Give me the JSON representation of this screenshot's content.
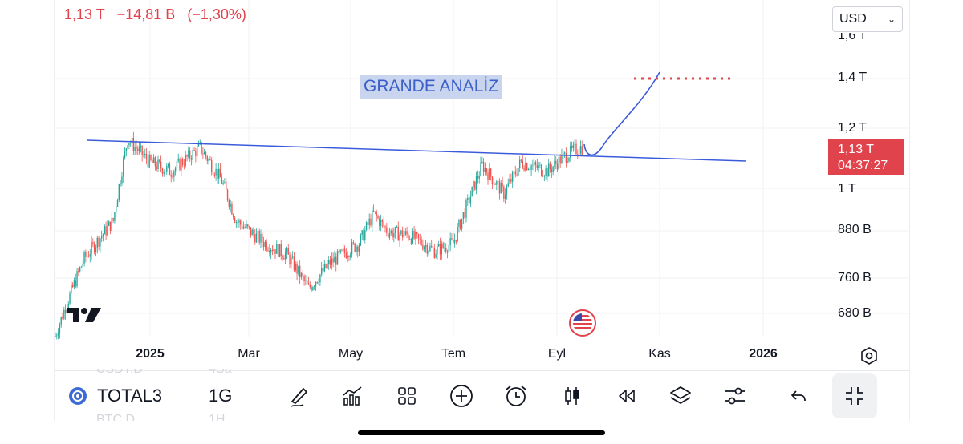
{
  "header": {
    "price": "1,13 T",
    "change": "−14,81 B",
    "change_pct": "(−1,30%)"
  },
  "currency": {
    "value": "USD"
  },
  "annotation": {
    "text": "GRANDE ANALİZ"
  },
  "y_axis": {
    "labels": [
      "1,6 T",
      "1,4 T",
      "1,2 T",
      "1 T",
      "880 B",
      "760 B",
      "680 B"
    ]
  },
  "price_tag": {
    "price": "1,13 T",
    "countdown": "04:37:27"
  },
  "x_axis": {
    "labels": [
      "2025",
      "Mar",
      "May",
      "Tem",
      "Eyl",
      "Kas",
      "2026"
    ]
  },
  "toolbar": {
    "symbol": "TOTAL3",
    "interval": "1G",
    "ghost_top_left": "USDT.D",
    "ghost_top_mid": "4Sa",
    "ghost_bottom_left": "BTC.D",
    "ghost_bottom_mid": "1H",
    "buttons": [
      "pencil-icon",
      "indicators-icon",
      "layout-grid-icon",
      "plus-circle-icon",
      "alarm-clock-icon",
      "candle-style-icon",
      "replay-icon",
      "layers-icon",
      "settings-sliders-icon",
      "undo-icon",
      "collapse-icon"
    ]
  },
  "colors": {
    "up": "#26a69a",
    "down": "#ef5350",
    "drawing": "#3b5bdb",
    "target_dots": "#e0434b",
    "price_tag": "#e0434b"
  },
  "chart_data": {
    "type": "candlestick",
    "symbol": "TOTAL3",
    "interval": "1D",
    "x_ticks": [
      "2025",
      "Mar",
      "May",
      "Tem",
      "Eyl",
      "Kas",
      "2026"
    ],
    "y_ticks": [
      "680 B",
      "760 B",
      "880 B",
      "1 T",
      "1,2 T",
      "1,4 T"
    ],
    "y_scale": "log",
    "last_price": "1,13 T",
    "close_keypoints_T": [
      [
        0,
        0.63
      ],
      [
        20,
        0.8
      ],
      [
        40,
        0.9
      ],
      [
        50,
        1.16
      ],
      [
        65,
        1.08
      ],
      [
        80,
        1.05
      ],
      [
        100,
        1.13
      ],
      [
        115,
        1.02
      ],
      [
        125,
        0.9
      ],
      [
        145,
        0.84
      ],
      [
        160,
        0.81
      ],
      [
        175,
        0.73
      ],
      [
        190,
        0.79
      ],
      [
        210,
        0.84
      ],
      [
        220,
        0.92
      ],
      [
        230,
        0.87
      ],
      [
        245,
        0.86
      ],
      [
        262,
        0.82
      ],
      [
        275,
        0.84
      ],
      [
        285,
        0.95
      ],
      [
        295,
        1.07
      ],
      [
        310,
        0.98
      ],
      [
        322,
        1.08
      ],
      [
        340,
        1.05
      ],
      [
        352,
        1.1
      ],
      [
        362,
        1.13
      ]
    ],
    "drawings": {
      "resistance_line": "trendline from ~1,17 T (Dec 2024) sloping to ~1,09 T (Dec 2025)",
      "projection": "curve from ~1,13 T rising to ~1,42 T by Kas",
      "target_level_T": 1.4,
      "annotation": "GRANDE ANALİZ"
    }
  }
}
